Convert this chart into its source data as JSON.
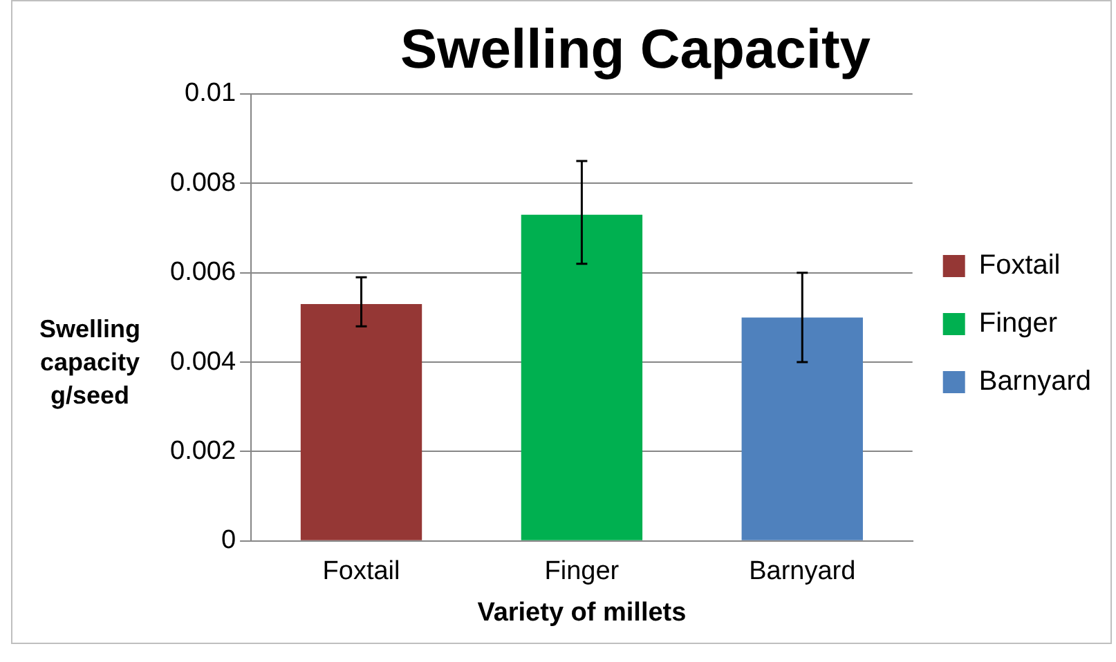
{
  "chart_data": {
    "type": "bar",
    "title": "Swelling Capacity",
    "xlabel": "Variety of millets",
    "ylabel": "Swelling capacity g/seed",
    "categories": [
      "Foxtail",
      "Finger",
      "Barnyard"
    ],
    "series": [
      {
        "name": "Foxtail",
        "color": "#953735",
        "values": [
          0.0053,
          null,
          null
        ],
        "errors": [
          [
            0.0048,
            0.0059
          ],
          null,
          null
        ]
      },
      {
        "name": "Finger",
        "color": "#00b050",
        "values": [
          null,
          0.0073,
          null
        ],
        "errors": [
          null,
          [
            0.0062,
            0.0085
          ],
          null
        ]
      },
      {
        "name": "Barnyard",
        "color": "#4f81bd",
        "values": [
          null,
          null,
          0.005
        ],
        "errors": [
          null,
          null,
          [
            0.004,
            0.006
          ]
        ]
      }
    ],
    "ylim": [
      0,
      0.01
    ],
    "yticks": [
      0,
      0.002,
      0.004,
      0.006,
      0.008,
      0.01
    ],
    "grid": "y",
    "legend": "right"
  }
}
